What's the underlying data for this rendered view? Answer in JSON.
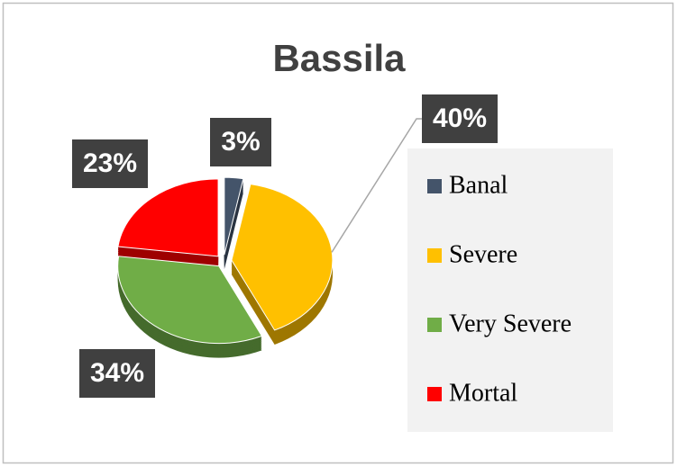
{
  "chart_data": {
    "type": "pie",
    "title": "Bassila",
    "categories": [
      "Banal",
      "Severe",
      "Very Severe",
      "Mortal"
    ],
    "values": [
      3,
      40,
      34,
      23
    ],
    "value_labels": [
      "3%",
      "40%",
      "34%",
      "23%"
    ],
    "colors": [
      "#44546a",
      "#ffc000",
      "#70ad47",
      "#ff0000"
    ],
    "legend": "right"
  }
}
